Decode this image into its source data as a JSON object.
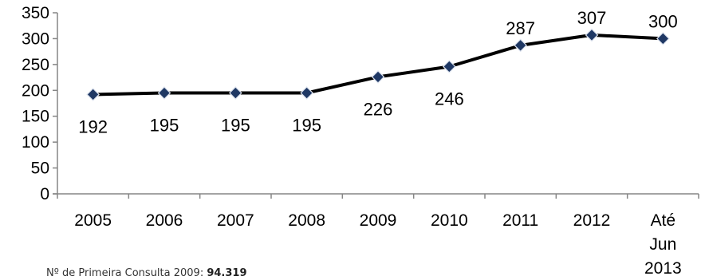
{
  "chart_data": {
    "type": "line",
    "title": "",
    "xlabel": "",
    "ylabel": "",
    "categories": [
      "2005",
      "2006",
      "2007",
      "2008",
      "2009",
      "2010",
      "2011",
      "2012",
      "Até Jun 2013"
    ],
    "series": [
      {
        "values": [
          192,
          195,
          195,
          195,
          226,
          246,
          287,
          307,
          300
        ]
      }
    ],
    "ylim": [
      0,
      350
    ],
    "yticks": [
      0,
      50,
      100,
      150,
      200,
      250,
      300,
      350
    ],
    "data_labels": [
      "192",
      "195",
      "195",
      "195",
      "226",
      "246",
      "287",
      "307",
      "300"
    ],
    "grid": false,
    "legend": "none",
    "colors": {
      "line": "#000000",
      "marker_fill": "#1f3864",
      "marker_edge": "#dde3ee"
    }
  },
  "footnote": {
    "text": "Nº de Primeira Consulta 2009: ",
    "value": "94.319"
  }
}
